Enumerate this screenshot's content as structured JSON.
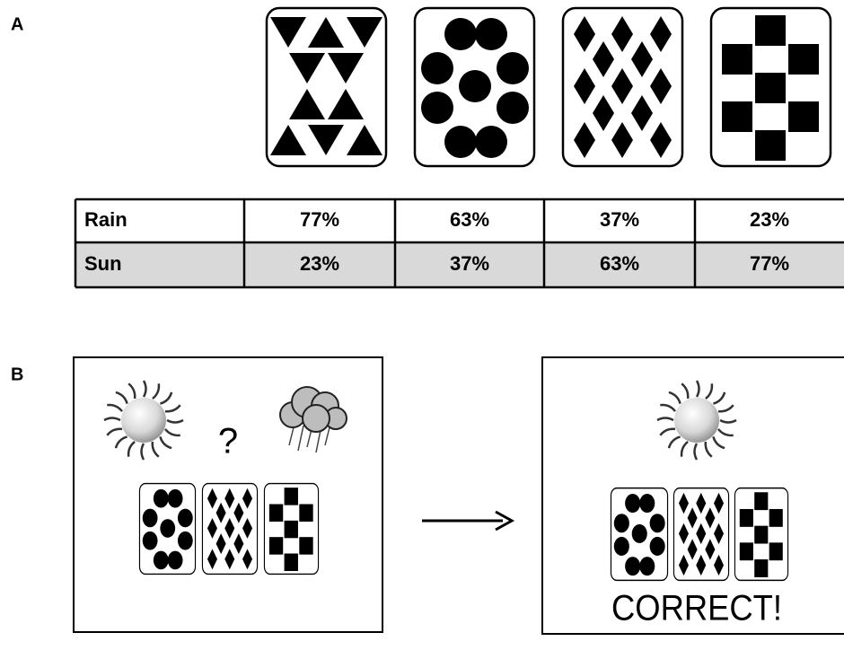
{
  "panels": {
    "a": {
      "label": "A"
    },
    "b": {
      "label": "B"
    }
  },
  "table": {
    "rows": [
      [
        "Rain",
        "77%",
        "63%",
        "37%",
        "23%"
      ],
      [
        "Sun",
        "23%",
        "37%",
        "63%",
        "77%"
      ]
    ]
  },
  "trial": {
    "prompt": "?",
    "feedback": "CORRECT!"
  }
}
